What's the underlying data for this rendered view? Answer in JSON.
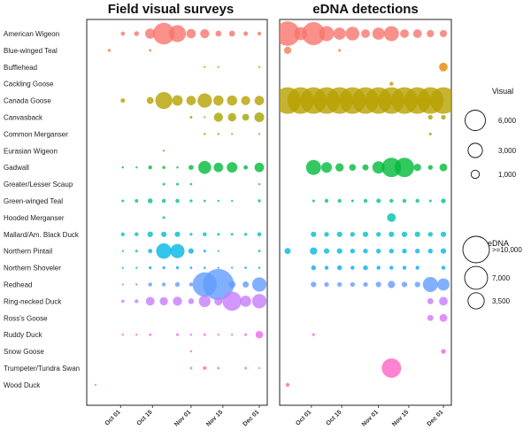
{
  "chart_data": {
    "type": "bubble",
    "dates": [
      "Sep 20",
      "Sep 26",
      "Oct 02",
      "Oct 08",
      "Oct 14",
      "Oct 20",
      "Oct 26",
      "Nov 01",
      "Nov 07",
      "Nov 13",
      "Nov 19",
      "Nov 25",
      "Dec 01"
    ],
    "x_ticks": [
      "Oct 01",
      "Oct 15",
      "Nov 01",
      "Nov 15",
      "Dec 01"
    ],
    "species": [
      "American Wigeon",
      "Blue-winged Teal",
      "Bufflehead",
      "Cackling Goose",
      "Canada Goose",
      "Canvasback",
      "Common Merganser",
      "Eurasian Wigeon",
      "Gadwall",
      "Greater/Lesser Scaup",
      "Green-winged Teal",
      "Hooded Merganser",
      "Mallard/Am. Black Duck",
      "Northern Pintail",
      "Northern Shoveler",
      "Redhead",
      "Ring-necked Duck",
      "Ross's Goose",
      "Ruddy Duck",
      "Snow Goose",
      "Trumpeter/Tundra Swan",
      "Wood Duck"
    ],
    "colors": [
      "#f8766d",
      "#f17f4b",
      "#e48800",
      "#d39200",
      "#b6a000",
      "#a3a500",
      "#8aaa00",
      "#5eb300",
      "#00ba38",
      "#00be6c",
      "#00c08b",
      "#00c1a7",
      "#00bfc4",
      "#00b6e5",
      "#00a9ff",
      "#619cff",
      "#c77cff",
      "#db72fb",
      "#ef67eb",
      "#fb61d7",
      "#ff64c2",
      "#ff6c91"
    ],
    "panels": [
      {
        "title": "Field visual surveys",
        "values": [
          [
            0,
            0,
            250,
            350,
            1500,
            6800,
            4200,
            1300,
            1200,
            500,
            500,
            300,
            220
          ],
          [
            0,
            130,
            0,
            0,
            90,
            0,
            0,
            0,
            0,
            0,
            0,
            0,
            0
          ],
          [
            0,
            0,
            0,
            0,
            0,
            0,
            0,
            0,
            60,
            60,
            0,
            0,
            60
          ],
          [
            0,
            0,
            0,
            0,
            0,
            0,
            0,
            0,
            0,
            0,
            0,
            0,
            0
          ],
          [
            0,
            0,
            280,
            0,
            700,
            4200,
            1600,
            1300,
            3000,
            1500,
            1500,
            1200,
            1300
          ],
          [
            0,
            0,
            0,
            0,
            0,
            0,
            0,
            110,
            20,
            1200,
            1000,
            700,
            1400
          ],
          [
            0,
            0,
            0,
            0,
            0,
            0,
            0,
            0,
            70,
            70,
            60,
            0,
            60
          ],
          [
            0,
            0,
            0,
            0,
            0,
            60,
            0,
            0,
            0,
            0,
            0,
            0,
            0
          ],
          [
            0,
            0,
            70,
            60,
            210,
            140,
            70,
            350,
            2400,
            1300,
            1600,
            270,
            1300
          ],
          [
            0,
            0,
            0,
            0,
            0,
            100,
            100,
            80,
            0,
            0,
            0,
            0,
            60
          ],
          [
            0,
            0,
            110,
            180,
            350,
            230,
            230,
            120,
            90,
            70,
            60,
            0,
            130
          ],
          [
            0,
            0,
            0,
            0,
            0,
            110,
            0,
            0,
            0,
            0,
            0,
            0,
            0
          ],
          [
            0,
            0,
            210,
            230,
            460,
            420,
            440,
            120,
            230,
            110,
            110,
            130,
            240
          ],
          [
            0,
            0,
            60,
            100,
            280,
            3400,
            2900,
            420,
            110,
            50,
            0,
            0,
            90
          ],
          [
            0,
            0,
            60,
            60,
            120,
            120,
            120,
            90,
            80,
            40,
            40,
            80,
            70
          ],
          [
            0,
            0,
            60,
            70,
            230,
            220,
            330,
            220,
            8500,
            14000,
            700,
            560,
            3000
          ],
          [
            0,
            0,
            150,
            220,
            1100,
            1000,
            1200,
            490,
            2000,
            1000,
            5300,
            1800,
            3000
          ],
          [
            0,
            0,
            0,
            0,
            0,
            0,
            0,
            0,
            0,
            0,
            0,
            0,
            0
          ],
          [
            0,
            0,
            70,
            70,
            100,
            0,
            100,
            70,
            90,
            60,
            70,
            100,
            810
          ],
          [
            0,
            0,
            0,
            0,
            0,
            0,
            0,
            70,
            0,
            0,
            0,
            0,
            0
          ],
          [
            0,
            0,
            0,
            0,
            0,
            0,
            0,
            90,
            190,
            90,
            0,
            90,
            60
          ],
          [
            50,
            0,
            0,
            0,
            0,
            0,
            0,
            0,
            0,
            0,
            0,
            0,
            0
          ]
        ]
      },
      {
        "title": "eDNA detections",
        "values": [
          [
            8000,
            2300,
            7000,
            3000,
            2000,
            2500,
            1000,
            2000,
            3000,
            1000,
            1000,
            700,
            700
          ],
          [
            700,
            0,
            0,
            0,
            100,
            0,
            0,
            0,
            0,
            0,
            0,
            0,
            0
          ],
          [
            0,
            0,
            0,
            0,
            0,
            0,
            0,
            0,
            0,
            0,
            0,
            0,
            1000
          ],
          [
            0,
            0,
            0,
            0,
            0,
            0,
            0,
            0,
            200,
            0,
            0,
            0,
            0
          ],
          [
            25000,
            25000,
            25000,
            25000,
            25000,
            25000,
            25000,
            25000,
            25000,
            25000,
            25000,
            25000,
            25000
          ],
          [
            0,
            0,
            0,
            0,
            0,
            0,
            0,
            0,
            0,
            0,
            0,
            300,
            300
          ],
          [
            0,
            0,
            0,
            0,
            0,
            0,
            0,
            0,
            0,
            0,
            0,
            100,
            0
          ],
          [
            0,
            0,
            0,
            0,
            0,
            0,
            0,
            0,
            0,
            0,
            0,
            0,
            0
          ],
          [
            0,
            0,
            3000,
            1500,
            900,
            600,
            500,
            2000,
            5000,
            5000,
            700,
            300,
            800
          ],
          [
            0,
            0,
            0,
            0,
            0,
            0,
            0,
            0,
            0,
            0,
            0,
            0,
            0
          ],
          [
            0,
            0,
            100,
            200,
            200,
            100,
            200,
            250,
            200,
            200,
            200,
            100,
            300
          ],
          [
            0,
            0,
            0,
            0,
            0,
            0,
            0,
            0,
            1000,
            0,
            0,
            0,
            0
          ],
          [
            0,
            0,
            400,
            300,
            400,
            300,
            400,
            300,
            400,
            400,
            400,
            300,
            400
          ],
          [
            500,
            0,
            700,
            400,
            400,
            300,
            300,
            300,
            300,
            300,
            300,
            300,
            400
          ],
          [
            0,
            0,
            300,
            200,
            300,
            200,
            300,
            200,
            200,
            200,
            200,
            0,
            200
          ],
          [
            0,
            0,
            400,
            300,
            300,
            300,
            300,
            400,
            700,
            400,
            400,
            3000,
            2000
          ],
          [
            0,
            0,
            0,
            0,
            0,
            0,
            0,
            0,
            0,
            0,
            0,
            500,
            1000
          ],
          [
            0,
            0,
            0,
            0,
            0,
            0,
            0,
            0,
            0,
            0,
            0,
            500,
            800
          ],
          [
            0,
            0,
            100,
            0,
            0,
            0,
            0,
            0,
            0,
            0,
            0,
            0,
            0
          ],
          [
            0,
            0,
            0,
            0,
            0,
            0,
            0,
            0,
            0,
            0,
            0,
            0,
            300
          ],
          [
            0,
            0,
            0,
            0,
            0,
            0,
            0,
            0,
            5000,
            0,
            0,
            0,
            0
          ],
          [
            200,
            0,
            0,
            0,
            0,
            0,
            0,
            0,
            0,
            0,
            0,
            0,
            0
          ]
        ]
      }
    ],
    "legends": [
      {
        "title": "Visual",
        "sizes": [
          6000,
          3000,
          1000
        ],
        "labels": [
          "6,000",
          "3,000",
          "1,000"
        ]
      },
      {
        "title": "eDNA",
        "sizes": [
          10000,
          7000,
          3500
        ],
        "labels": [
          ">=10,000",
          "7,000",
          "3,500"
        ]
      }
    ]
  }
}
